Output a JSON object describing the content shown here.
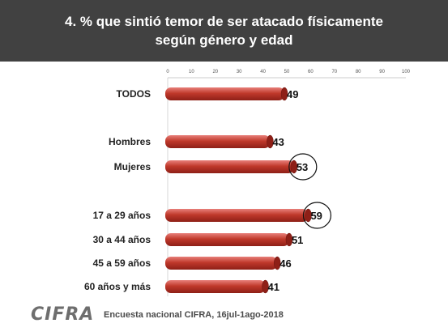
{
  "header": {
    "title_line1": "4. % que sintió temor de ser atacado físicamente",
    "title_line2": "según género y edad"
  },
  "footer": {
    "logo": "CIFRA",
    "source": "Encuesta nacional CIFRA,  16jul-1ago-2018"
  },
  "colors": {
    "header_bg": "#414141",
    "bar": "#c0392b",
    "bar_dark": "#8e1f17",
    "bar_light": "#e8807a"
  },
  "chart_data": {
    "type": "bar",
    "orientation": "horizontal",
    "categories": [
      "TODOS",
      "Hombres",
      "Mujeres",
      "17 a 29 años",
      "30 a 44 años",
      "45 a 59 años",
      "60 años y más"
    ],
    "values": [
      49,
      43,
      53,
      59,
      51,
      46,
      41
    ],
    "circled": [
      "Mujeres",
      "17 a 29 años"
    ],
    "xlim": [
      0,
      100
    ],
    "xticks": [
      0,
      10,
      20,
      30,
      40,
      50,
      60,
      70,
      80,
      90,
      100
    ],
    "axis_position": "top",
    "grid": false
  }
}
